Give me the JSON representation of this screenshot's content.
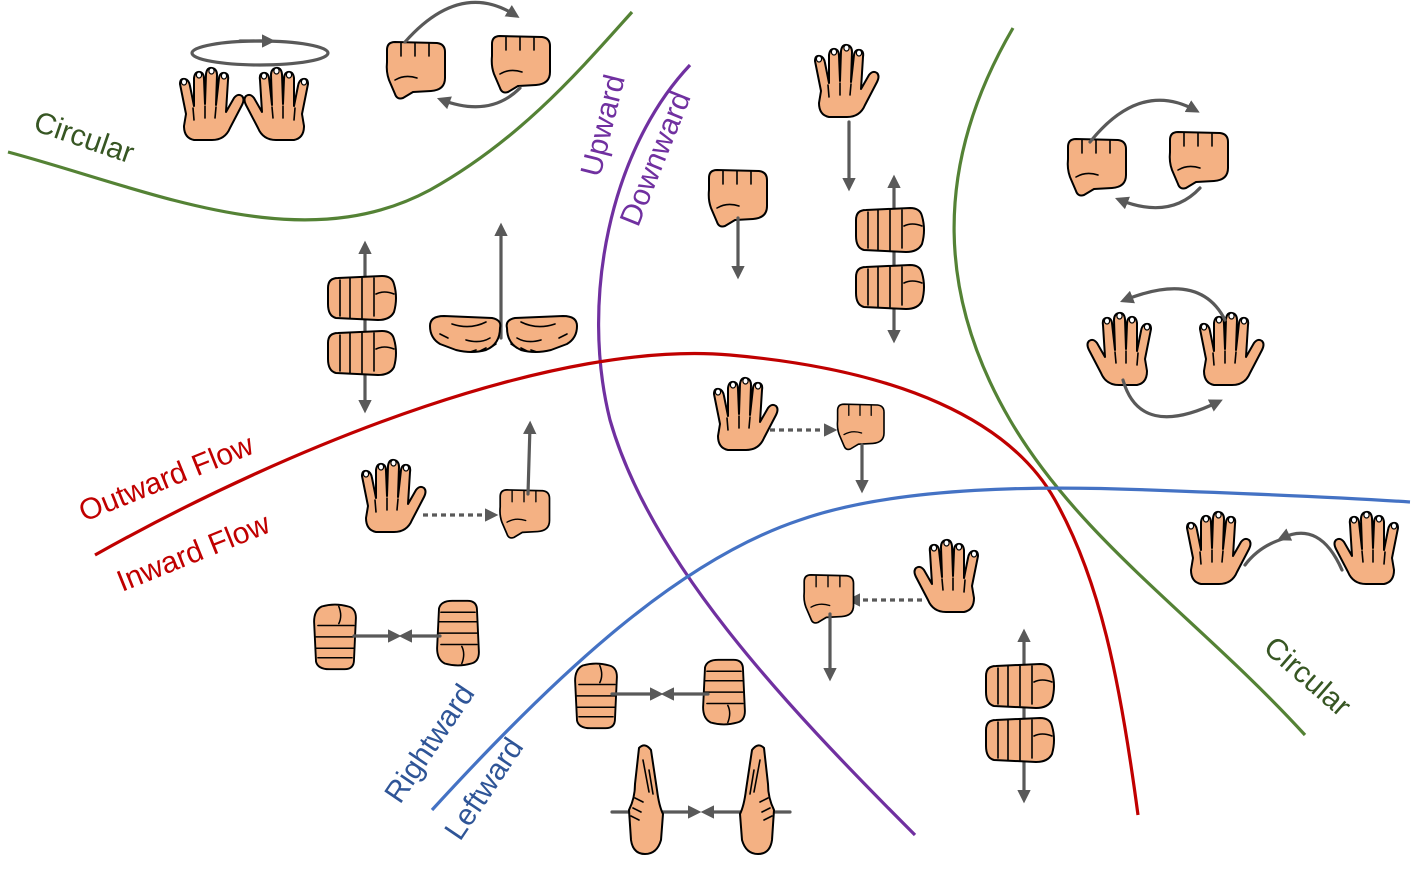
{
  "colors": {
    "circular": "#548235",
    "flow": "#c00000",
    "vertical": "#7030a0",
    "horizontal": "#4472c4",
    "skin": "#f4b183",
    "arrow": "#595959"
  },
  "labels": {
    "circular_left": "Circular",
    "circular_right": "Circular",
    "upward": "Upward",
    "downward": "Downward",
    "outward_flow": "Outward Flow",
    "inward_flow": "Inward Flow",
    "rightward": "Rightward",
    "leftward": "Leftward"
  },
  "icons": [
    "open-hands-rotate-icon",
    "two-fists-circular-icon",
    "open-hand-down-icon",
    "fist-down-icon",
    "stacked-fists-updown-icon",
    "two-fists-circular-icon",
    "open-hands-circular-icon",
    "stacked-fists-updown-icon",
    "cupped-hands-up-icon",
    "hand-to-fist-down-icon",
    "hand-to-fist-up-icon",
    "fists-inward-icon",
    "fist-from-hand-down-icon",
    "hand-arc-move-icon",
    "fists-inward-icon",
    "praying-hands-icon",
    "stacked-fists-updown-icon"
  ]
}
